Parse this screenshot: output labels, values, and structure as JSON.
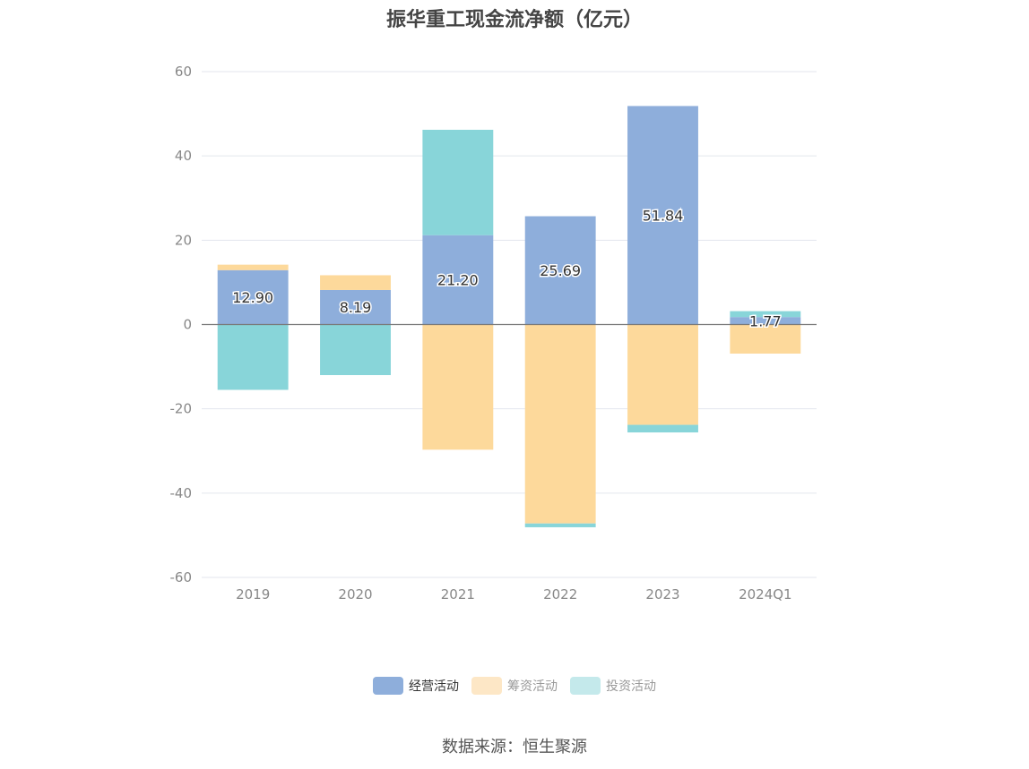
{
  "chart_data": {
    "type": "bar",
    "stacked": true,
    "title": "振华重工现金流净额（亿元）",
    "categories": [
      "2019",
      "2020",
      "2021",
      "2022",
      "2023",
      "2024Q1"
    ],
    "ylim": [
      -60,
      60
    ],
    "yticks": [
      -60,
      -40,
      -20,
      0,
      20,
      40,
      60
    ],
    "grid": true,
    "legend_position": "bottom",
    "series": [
      {
        "name": "经营活动",
        "color": "#8eaedb",
        "legend_color": "#8eaedb",
        "values": [
          12.9,
          8.19,
          21.2,
          25.69,
          51.84,
          1.77
        ],
        "labels": [
          "12.90",
          "8.19",
          "21.20",
          "25.69",
          "51.84",
          "1.77"
        ]
      },
      {
        "name": "筹资活动",
        "color": "#fdd99b",
        "legend_color": "#fde7c6",
        "values": [
          1.3,
          3.5,
          -29.7,
          -47.2,
          -23.8,
          -6.9
        ]
      },
      {
        "name": "投资活动",
        "color": "#88d5d9",
        "legend_color": "#c4e9eb",
        "values": [
          -15.5,
          -12.0,
          25.0,
          -0.9,
          -1.8,
          1.4
        ]
      }
    ],
    "source": "数据来源：恒生聚源"
  }
}
